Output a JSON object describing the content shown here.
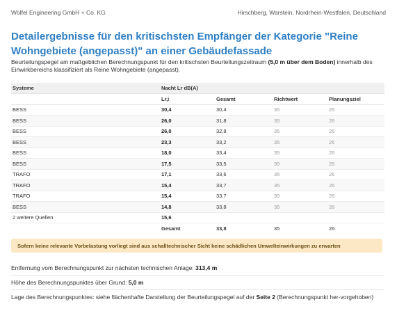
{
  "header": {
    "company": "Wölfel Engineering GmbH + Co. KG",
    "location": "Hirschberg, Warstein, Nordrhein-Westfalen, Deutschland"
  },
  "title": "Detailergebnisse für den kritischsten Empfänger der Kategorie \"Reine Wohngebiete (angepasst)\" an einer Gebäudefassade",
  "intro": {
    "text_before": "Beurteilungspegel am maßgeblichen Berechnungspunkt für den kritischsten Beurteilungszeitraum ",
    "highlight": "(5,0 m über dem Boden)",
    "text_after": " innerhalb des Einwirkbereichs klassifiziert als Reine Wohngebiete (angepasst)."
  },
  "table": {
    "col_systeme": "Systeme",
    "group_header": "Nacht Lr dB(A)",
    "col_lri": "Lr,i",
    "col_gesamt": "Gesamt",
    "col_richtwert": "Richtwert",
    "col_planungsziel": "Planungsziel",
    "rows": [
      {
        "system": "BESS",
        "lri": "30,4",
        "gesamt": "30,4",
        "richtwert": "35",
        "planungsziel": "26"
      },
      {
        "system": "BESS",
        "lri": "26,0",
        "gesamt": "31,8",
        "richtwert": "35",
        "planungsziel": "26"
      },
      {
        "system": "BESS",
        "lri": "26,0",
        "gesamt": "32,8",
        "richtwert": "35",
        "planungsziel": "26"
      },
      {
        "system": "BESS",
        "lri": "23,3",
        "gesamt": "33,2",
        "richtwert": "35",
        "planungsziel": "26"
      },
      {
        "system": "BESS",
        "lri": "18,0",
        "gesamt": "33,4",
        "richtwert": "35",
        "planungsziel": "26"
      },
      {
        "system": "BESS",
        "lri": "17,5",
        "gesamt": "33,5",
        "richtwert": "35",
        "planungsziel": "26"
      },
      {
        "system": "TRAFO",
        "lri": "17,1",
        "gesamt": "33,6",
        "richtwert": "35",
        "planungsziel": "26"
      },
      {
        "system": "TRAFO",
        "lri": "15,4",
        "gesamt": "33,7",
        "richtwert": "35",
        "planungsziel": "26"
      },
      {
        "system": "TRAFO",
        "lri": "15,4",
        "gesamt": "33,7",
        "richtwert": "35",
        "planungsziel": "26"
      },
      {
        "system": "BESS",
        "lri": "14,8",
        "gesamt": "33,8",
        "richtwert": "35",
        "planungsziel": "26"
      },
      {
        "system": "2 weitere Quellen",
        "lri": "15,6",
        "gesamt": "",
        "richtwert": "",
        "planungsziel": ""
      }
    ],
    "total": {
      "label": "Gesamt",
      "gesamt": "33,8",
      "richtwert": "35",
      "planungsziel": "26"
    }
  },
  "notice": "Sofern keine relevante Vorbelastung vorliegt sind aus schalltechnischer Sicht keine schädlichen Umwelteinwirkungen zu erwarten",
  "info": {
    "distance_label": "Entfernung vom Berechnungspunkt zur nächsten technischen Anlage: ",
    "distance_value": "313,4 m",
    "height_label": "Höhe des Berechnungspunktes über Grund: ",
    "height_value": "5,0 m",
    "position_before": "Lage des Berechnungspunktes: siehe flächenhafte Darstellung der Beurteilungspegel auf der ",
    "position_page": "Seite 2",
    "position_after": " (Berechnungspunkt her-vorgehoben)"
  }
}
